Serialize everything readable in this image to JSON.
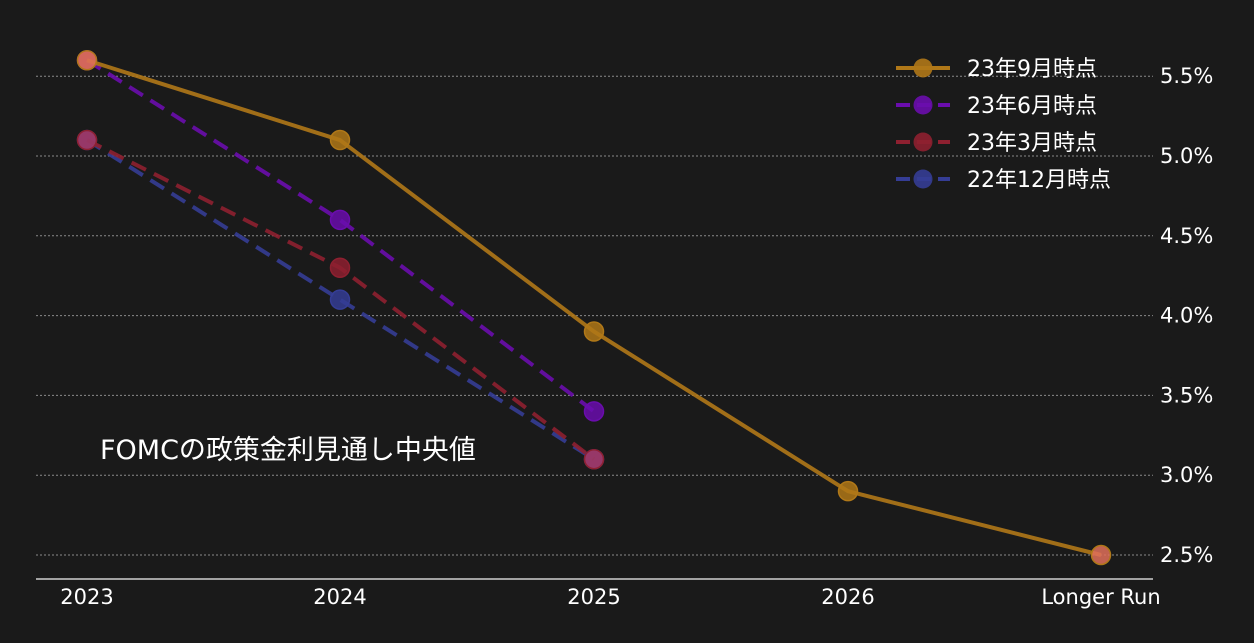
{
  "chart_data": {
    "type": "line",
    "title": "FOMCの政策金利見通し中央値",
    "categories": [
      "2023",
      "2024",
      "2025",
      "2026",
      "Longer Run"
    ],
    "ylim": [
      2.35,
      5.75
    ],
    "yticks": [
      "2.5%",
      "3.0%",
      "3.5%",
      "4.0%",
      "4.5%",
      "5.0%",
      "5.5%"
    ],
    "ytick_values": [
      2.5,
      3.0,
      3.5,
      4.0,
      4.5,
      5.0,
      5.5
    ],
    "grid": true,
    "legend_position": "top-right",
    "series": [
      {
        "name": "23年9月時点",
        "color": "#b07818",
        "dashed": false,
        "values": [
          5.6,
          5.1,
          3.9,
          2.9,
          2.5
        ]
      },
      {
        "name": "23年6月時点",
        "color": "#6a0dad",
        "dashed": true,
        "values": [
          5.6,
          4.6,
          3.4,
          null,
          null
        ]
      },
      {
        "name": "23年3月時点",
        "color": "#8e2030",
        "dashed": true,
        "values": [
          5.1,
          4.3,
          3.1,
          null,
          null
        ]
      },
      {
        "name": "22年12月時点",
        "color": "#353d95",
        "dashed": true,
        "values": [
          5.1,
          4.1,
          3.1,
          null,
          null
        ]
      }
    ]
  }
}
